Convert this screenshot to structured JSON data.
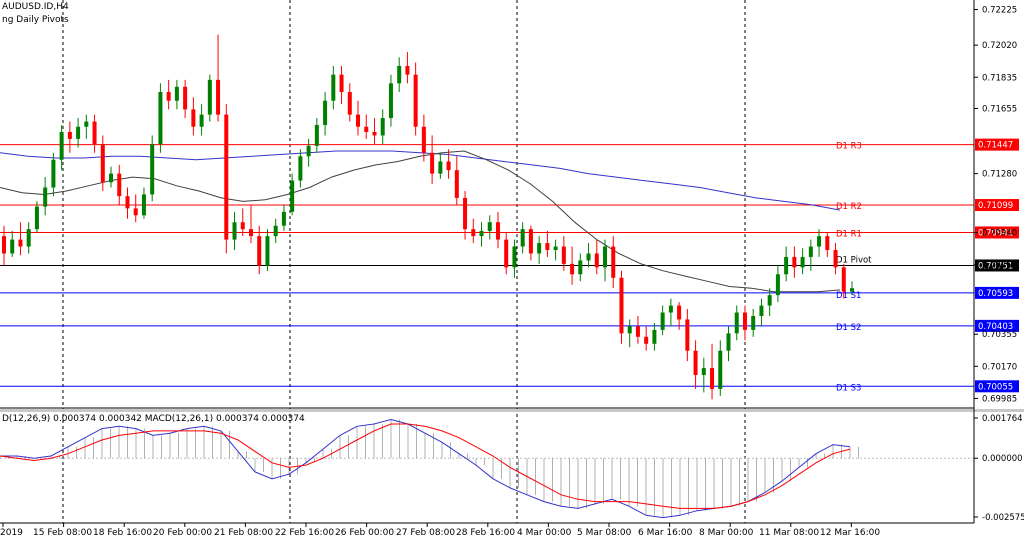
{
  "header": {
    "symbol": "AUDUSD.ID,H4",
    "indicator": "ng Daily Pivots",
    "macd_label": "D(12,26,9) 0.000374 0.000342 MACD(12,26,1) 0.000374 0.000374"
  },
  "price_axis": {
    "ticks": [
      "0.72225",
      "0.72020",
      "0.71835",
      "0.71655",
      "0.71280",
      "0.70940",
      "0.70755",
      "0.70355",
      "0.70170",
      "0.69985"
    ],
    "ticks_values": [
      0.72225,
      0.7202,
      0.71835,
      0.71655,
      0.7128,
      0.7094,
      0.70755,
      0.70355,
      0.7017,
      0.69985
    ]
  },
  "macd_axis": {
    "ticks": [
      "0.001764",
      "0.000000",
      "-0.002575"
    ],
    "ticks_values": [
      0.001764,
      0,
      -0.002575
    ]
  },
  "pivot_levels": [
    {
      "name": "D1 R3",
      "price_label": "0.71447",
      "value": 0.71447,
      "color": "#ff0000"
    },
    {
      "name": "D1 R2",
      "price_label": "0.71099",
      "value": 0.71099,
      "color": "#ff0000"
    },
    {
      "name": "D1 R1",
      "price_label": "0.70941",
      "value": 0.70941,
      "color": "#ff0000"
    },
    {
      "name": "D1 Pivot",
      "price_label": "0.70751",
      "value": 0.70751,
      "color": "#000000"
    },
    {
      "name": "D1 S1",
      "price_label": "0.70593",
      "value": 0.70593,
      "color": "#0000ff"
    },
    {
      "name": "D1 S2",
      "price_label": "0.70403",
      "value": 0.70403,
      "color": "#0000ff"
    },
    {
      "name": "D1 S3",
      "price_label": "0.70055",
      "value": 0.70055,
      "color": "#0000ff"
    }
  ],
  "time_axis": {
    "labels": [
      "2019",
      "15 Feb 08:00",
      "18 Feb 16:00",
      "20 Feb 00:00",
      "21 Feb 08:00",
      "22 Feb 16:00",
      "26 Feb 00:00",
      "27 Feb 08:00",
      "28 Feb 16:00",
      "4 Mar 00:00",
      "5 Mar 08:00",
      "6 Mar 16:00",
      "8 Mar 00:00",
      "11 Mar 08:00",
      "12 Mar 16:00"
    ]
  },
  "colors": {
    "bull": "#008000",
    "bear": "#ff0000",
    "ma_fast": "#404040",
    "ma_slow": "#3333cc",
    "macd_line": "#3333cc",
    "signal_line": "#ff0000"
  },
  "chart_data": {
    "type": "candlestick",
    "symbol": "AUDUSD",
    "timeframe": "H4",
    "candles_ohlc": [
      [
        0.7092,
        0.7098,
        0.7075,
        0.7082
      ],
      [
        0.7082,
        0.7095,
        0.708,
        0.709
      ],
      [
        0.709,
        0.71,
        0.7081,
        0.7086
      ],
      [
        0.7086,
        0.71,
        0.7082,
        0.7096
      ],
      [
        0.7096,
        0.7112,
        0.7094,
        0.7109
      ],
      [
        0.7109,
        0.7126,
        0.7104,
        0.712
      ],
      [
        0.712,
        0.714,
        0.7115,
        0.7136
      ],
      [
        0.7136,
        0.7156,
        0.713,
        0.7152
      ],
      [
        0.7152,
        0.7158,
        0.714,
        0.7148
      ],
      [
        0.7148,
        0.716,
        0.7143,
        0.7155
      ],
      [
        0.7155,
        0.7162,
        0.7148,
        0.7158
      ],
      [
        0.7158,
        0.7162,
        0.714,
        0.7145
      ],
      [
        0.7145,
        0.715,
        0.7118,
        0.7123
      ],
      [
        0.7123,
        0.7132,
        0.712,
        0.7128
      ],
      [
        0.7128,
        0.7133,
        0.711,
        0.7115
      ],
      [
        0.7115,
        0.712,
        0.7102,
        0.7108
      ],
      [
        0.7108,
        0.7116,
        0.71,
        0.7104
      ],
      [
        0.7104,
        0.712,
        0.7102,
        0.7116
      ],
      [
        0.7116,
        0.715,
        0.7112,
        0.7145
      ],
      [
        0.7145,
        0.718,
        0.714,
        0.7175
      ],
      [
        0.7175,
        0.7182,
        0.7165,
        0.717
      ],
      [
        0.717,
        0.7182,
        0.7165,
        0.7178
      ],
      [
        0.7178,
        0.7182,
        0.716,
        0.7165
      ],
      [
        0.7165,
        0.7172,
        0.715,
        0.7155
      ],
      [
        0.7155,
        0.7168,
        0.715,
        0.7162
      ],
      [
        0.7162,
        0.7185,
        0.7158,
        0.7182
      ],
      [
        0.7182,
        0.7208,
        0.7158,
        0.7162
      ],
      [
        0.7162,
        0.7168,
        0.7082,
        0.709
      ],
      [
        0.709,
        0.7106,
        0.7084,
        0.71
      ],
      [
        0.71,
        0.7108,
        0.7092,
        0.7096
      ],
      [
        0.7096,
        0.711,
        0.7088,
        0.7092
      ],
      [
        0.7092,
        0.7098,
        0.707,
        0.7075
      ],
      [
        0.7075,
        0.7096,
        0.7072,
        0.7092
      ],
      [
        0.7092,
        0.7102,
        0.7088,
        0.7098
      ],
      [
        0.7098,
        0.711,
        0.7095,
        0.7106
      ],
      [
        0.7106,
        0.7128,
        0.7104,
        0.7124
      ],
      [
        0.7124,
        0.7142,
        0.712,
        0.7138
      ],
      [
        0.7138,
        0.7148,
        0.7132,
        0.7144
      ],
      [
        0.7144,
        0.716,
        0.714,
        0.7156
      ],
      [
        0.7156,
        0.7175,
        0.715,
        0.717
      ],
      [
        0.717,
        0.719,
        0.7165,
        0.7185
      ],
      [
        0.7185,
        0.719,
        0.7168,
        0.7175
      ],
      [
        0.7175,
        0.718,
        0.7158,
        0.7162
      ],
      [
        0.7162,
        0.717,
        0.715,
        0.7155
      ],
      [
        0.7155,
        0.7162,
        0.7148,
        0.7152
      ],
      [
        0.7152,
        0.716,
        0.7145,
        0.715
      ],
      [
        0.715,
        0.7165,
        0.7145,
        0.716
      ],
      [
        0.716,
        0.7185,
        0.7155,
        0.718
      ],
      [
        0.718,
        0.7195,
        0.7175,
        0.719
      ],
      [
        0.719,
        0.7198,
        0.718,
        0.7185
      ],
      [
        0.7185,
        0.7192,
        0.715,
        0.7155
      ],
      [
        0.7155,
        0.7162,
        0.7135,
        0.714
      ],
      [
        0.714,
        0.715,
        0.7122,
        0.7128
      ],
      [
        0.7128,
        0.714,
        0.7125,
        0.7135
      ],
      [
        0.7135,
        0.7142,
        0.7125,
        0.713
      ],
      [
        0.713,
        0.7138,
        0.711,
        0.7114
      ],
      [
        0.7114,
        0.7118,
        0.709,
        0.7096
      ],
      [
        0.7096,
        0.7102,
        0.7088,
        0.7092
      ],
      [
        0.7092,
        0.71,
        0.7086,
        0.7095
      ],
      [
        0.7095,
        0.7104,
        0.709,
        0.71
      ],
      [
        0.71,
        0.7106,
        0.7085,
        0.709
      ],
      [
        0.709,
        0.7094,
        0.707,
        0.7074
      ],
      [
        0.7074,
        0.709,
        0.7068,
        0.7086
      ],
      [
        0.7086,
        0.71,
        0.7082,
        0.7096
      ],
      [
        0.7096,
        0.7098,
        0.7078,
        0.7082
      ],
      [
        0.7082,
        0.7092,
        0.7076,
        0.7088
      ],
      [
        0.7088,
        0.7095,
        0.708,
        0.7084
      ],
      [
        0.7084,
        0.709,
        0.7078,
        0.7086
      ],
      [
        0.7086,
        0.7092,
        0.7072,
        0.7076
      ],
      [
        0.7076,
        0.7086,
        0.7064,
        0.707
      ],
      [
        0.707,
        0.7082,
        0.7066,
        0.7078
      ],
      [
        0.7078,
        0.7088,
        0.7074,
        0.7082
      ],
      [
        0.7082,
        0.709,
        0.707,
        0.7074
      ],
      [
        0.7074,
        0.709,
        0.7066,
        0.7086
      ],
      [
        0.7086,
        0.7092,
        0.7062,
        0.7068
      ],
      [
        0.7068,
        0.7072,
        0.703,
        0.7036
      ],
      [
        0.7036,
        0.7044,
        0.7028,
        0.704
      ],
      [
        0.704,
        0.7046,
        0.703,
        0.7034
      ],
      [
        0.7034,
        0.704,
        0.7026,
        0.703
      ],
      [
        0.703,
        0.7042,
        0.7026,
        0.7038
      ],
      [
        0.7038,
        0.7052,
        0.7035,
        0.7048
      ],
      [
        0.7048,
        0.7056,
        0.704,
        0.7052
      ],
      [
        0.7052,
        0.7054,
        0.7038,
        0.7044
      ],
      [
        0.7044,
        0.705,
        0.702,
        0.7026
      ],
      [
        0.7026,
        0.7032,
        0.7004,
        0.7012
      ],
      [
        0.7012,
        0.7022,
        0.7002,
        0.7016
      ],
      [
        0.7016,
        0.703,
        0.6998,
        0.7004
      ],
      [
        0.7004,
        0.7032,
        0.7,
        0.7026
      ],
      [
        0.7026,
        0.704,
        0.702,
        0.7036
      ],
      [
        0.7036,
        0.7052,
        0.7032,
        0.7048
      ],
      [
        0.7048,
        0.7052,
        0.7032,
        0.7038
      ],
      [
        0.7038,
        0.705,
        0.7034,
        0.7046
      ],
      [
        0.7046,
        0.7056,
        0.704,
        0.7052
      ],
      [
        0.7052,
        0.7062,
        0.7046,
        0.7058
      ],
      [
        0.7058,
        0.7075,
        0.7054,
        0.707
      ],
      [
        0.707,
        0.7086,
        0.7066,
        0.708
      ],
      [
        0.708,
        0.7086,
        0.7068,
        0.7074
      ],
      [
        0.7074,
        0.7085,
        0.707,
        0.708
      ],
      [
        0.708,
        0.709,
        0.7072,
        0.7086
      ],
      [
        0.7086,
        0.7096,
        0.708,
        0.7092
      ],
      [
        0.7092,
        0.7094,
        0.708,
        0.7084
      ],
      [
        0.7084,
        0.7088,
        0.707,
        0.7074
      ],
      [
        0.7074,
        0.7076,
        0.7056,
        0.706
      ],
      [
        0.706,
        0.7066,
        0.7058,
        0.7062
      ]
    ],
    "ma_fast": [
      0.712,
      0.7117,
      0.7116,
      0.7118,
      0.7121,
      0.7124,
      0.7126,
      0.7125,
      0.7121,
      0.7118,
      0.7114,
      0.7112,
      0.7113,
      0.7116,
      0.712,
      0.7126,
      0.713,
      0.7133,
      0.7135,
      0.7138,
      0.714,
      0.7141,
      0.7136,
      0.713,
      0.7122,
      0.7112,
      0.71,
      0.709,
      0.7082,
      0.7076,
      0.7072,
      0.7069,
      0.7066,
      0.7063,
      0.7062,
      0.706,
      0.706,
      0.706,
      0.7061
    ],
    "ma_slow": [
      0.714,
      0.7138,
      0.7137,
      0.7137,
      0.7138,
      0.7138,
      0.7137,
      0.7136,
      0.7137,
      0.7138,
      0.7139,
      0.714,
      0.7141,
      0.7141,
      0.7141,
      0.714,
      0.7139,
      0.7137,
      0.7135,
      0.7133,
      0.7131,
      0.7128,
      0.7126,
      0.7124,
      0.7122,
      0.712,
      0.7117,
      0.7114,
      0.7112,
      0.711,
      0.7107
    ],
    "macd": [
      0.0001,
      0.0001,
      0.0,
      0.0001,
      0.0005,
      0.0009,
      0.0013,
      0.0014,
      0.0013,
      0.001,
      0.0011,
      0.0013,
      0.0014,
      0.0012,
      0.0003,
      -0.0006,
      -0.0009,
      -0.0007,
      -0.0002,
      0.0004,
      0.001,
      0.0014,
      0.0015,
      0.0017,
      0.0015,
      0.0011,
      0.0007,
      0.0002,
      -0.0003,
      -0.0009,
      -0.0013,
      -0.0016,
      -0.0019,
      -0.0021,
      -0.0022,
      -0.002,
      -0.0018,
      -0.0021,
      -0.0025,
      -0.0026,
      -0.0025,
      -0.0023,
      -0.0022,
      -0.0021,
      -0.0019,
      -0.0015,
      -0.001,
      -0.0004,
      0.0002,
      0.0006,
      0.0005
    ],
    "signal": [
      0.0001,
      0.0,
      -0.0001,
      0.0,
      0.0002,
      0.0005,
      0.0008,
      0.001,
      0.0011,
      0.0012,
      0.0012,
      0.0012,
      0.0012,
      0.0011,
      0.0008,
      0.0003,
      -0.0002,
      -0.0004,
      -0.0003,
      0.0,
      0.0004,
      0.0008,
      0.0012,
      0.0015,
      0.0015,
      0.0014,
      0.0012,
      0.0009,
      0.0005,
      0.0001,
      -0.0004,
      -0.0008,
      -0.0012,
      -0.0016,
      -0.0018,
      -0.0019,
      -0.0019,
      -0.0019,
      -0.002,
      -0.0021,
      -0.0022,
      -0.0022,
      -0.0022,
      -0.0021,
      -0.0019,
      -0.0016,
      -0.0012,
      -0.0007,
      -0.0002,
      0.0002,
      0.0004
    ],
    "price_range": [
      0.6993,
      0.7228
    ],
    "macd_range": [
      -0.002575,
      0.001764
    ]
  }
}
